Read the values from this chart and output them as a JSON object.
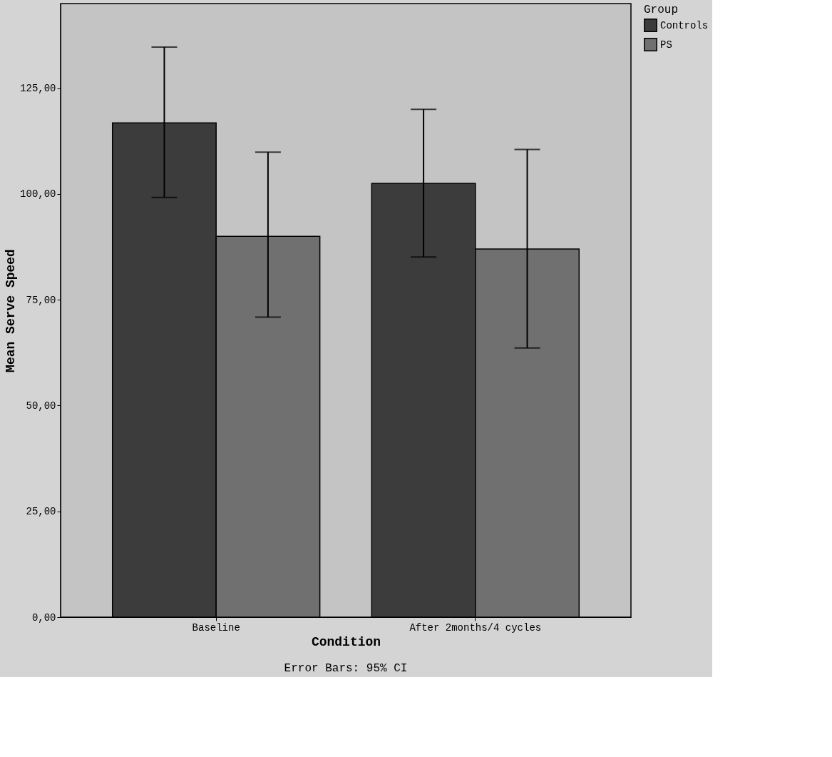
{
  "chart_data": {
    "type": "bar",
    "xlabel": "Condition",
    "ylabel": "Mean Serve Speed",
    "legend_title": "Group",
    "categories": [
      "Baseline",
      "After 2months/4 cycles"
    ],
    "series": [
      {
        "name": "Controls",
        "color": "#3c3c3c",
        "values": [
          116.8,
          102.5
        ],
        "errors": [
          [
            99.2,
            134.7
          ],
          [
            85.1,
            120.0
          ]
        ]
      },
      {
        "name": "PS",
        "color": "#707070",
        "values": [
          90.0,
          87.0
        ],
        "errors": [
          [
            70.9,
            109.9
          ],
          [
            63.6,
            110.5
          ]
        ]
      }
    ],
    "ylim": [
      0,
      145
    ],
    "yticks": [
      {
        "value": 0,
        "label": "0,00"
      },
      {
        "value": 25,
        "label": "25,00"
      },
      {
        "value": 50,
        "label": "50,00"
      },
      {
        "value": 75,
        "label": "75,00"
      },
      {
        "value": 100,
        "label": "100,00"
      },
      {
        "value": 125,
        "label": "125,00"
      }
    ],
    "legend": "top right",
    "annotations": [
      "Error Bars: 95% CI"
    ]
  }
}
